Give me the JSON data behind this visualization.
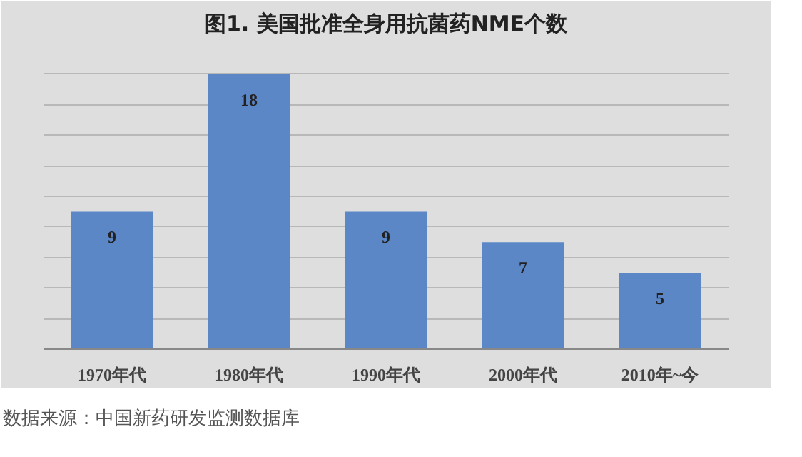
{
  "chart_data": {
    "type": "bar",
    "title": "图1. 美国批准全身用抗菌药NME个数",
    "categories": [
      "1970年代",
      "1980年代",
      "1990年代",
      "2000年代",
      "2010年~今"
    ],
    "values": [
      9,
      18,
      9,
      7,
      5
    ],
    "color": "#5b87c7",
    "ylim": [
      0,
      20
    ],
    "yticks": [
      {
        "value": 0,
        "label": null
      },
      {
        "value": 2,
        "label": null
      },
      {
        "value": 4,
        "label": null
      },
      {
        "value": 6,
        "label": null
      },
      {
        "value": 8,
        "label": null
      },
      {
        "value": 10,
        "label": null
      },
      {
        "value": 12,
        "label": null
      },
      {
        "value": 14,
        "label": null
      },
      {
        "value": 16,
        "label": null
      },
      {
        "value": 18,
        "label": null
      },
      {
        "value": 20,
        "label": null
      }
    ],
    "grid": "y",
    "tick_labels": "x",
    "data_labels": true,
    "annotations": [
      "数据来源：中国新药研发监测数据库"
    ]
  }
}
